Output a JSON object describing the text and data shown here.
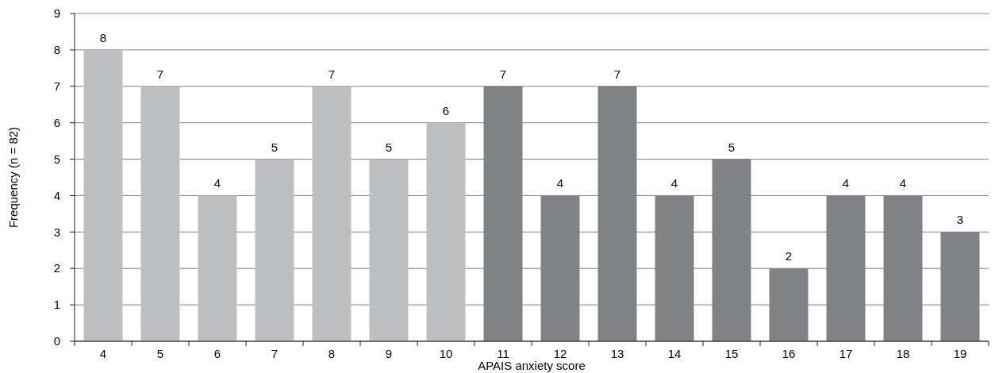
{
  "chart_data": {
    "type": "bar",
    "xlabel": "APAIS anxiety score",
    "ylabel": "Frequency (n = 82)",
    "categories": [
      "4",
      "5",
      "6",
      "7",
      "8",
      "9",
      "10",
      "11",
      "12",
      "13",
      "14",
      "15",
      "16",
      "17",
      "18",
      "19"
    ],
    "values": [
      8,
      7,
      4,
      5,
      7,
      5,
      6,
      7,
      4,
      7,
      4,
      5,
      2,
      4,
      4,
      3
    ],
    "colors": [
      "#bcbec0",
      "#bcbec0",
      "#bcbec0",
      "#bcbec0",
      "#bcbec0",
      "#bcbec0",
      "#bcbec0",
      "#808285",
      "#808285",
      "#808285",
      "#808285",
      "#808285",
      "#808285",
      "#808285",
      "#808285",
      "#808285"
    ],
    "ylim": [
      0,
      9
    ],
    "yticks": [
      0,
      1,
      2,
      3,
      4,
      5,
      6,
      7,
      8,
      9
    ],
    "grid": "y",
    "data_labels": true
  }
}
